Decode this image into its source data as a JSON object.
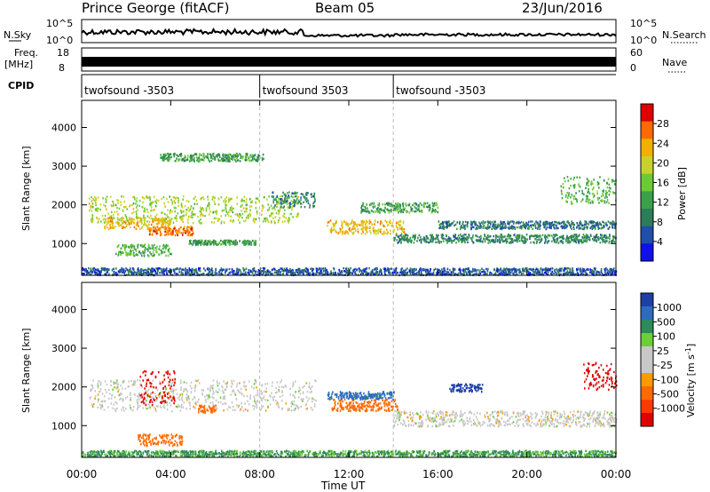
{
  "header": {
    "station": "Prince George (fitACF)",
    "beam": "Beam 05",
    "date": "23/Jun/2016"
  },
  "top_panels": {
    "nsky_label": "N.Sky",
    "nsky_ticks": [
      "10^5",
      "10^0"
    ],
    "nsearch_label": "N.Search",
    "nsearch_ticks": [
      "10^5",
      "10^0"
    ],
    "freq_label": "Freq.",
    "freq_unit": "[MHz]",
    "freq_ticks": [
      "18",
      "8"
    ],
    "nave_label": "Nave",
    "nave_ticks": [
      "60",
      "0"
    ],
    "cpid_label": "CPID",
    "cpid_segments": [
      {
        "label": "twofsound -3503",
        "start_h": 0,
        "end_h": 8
      },
      {
        "label": "twofsound 3503",
        "start_h": 8,
        "end_h": 14
      },
      {
        "label": "twofsound -3503",
        "start_h": 14,
        "end_h": 24
      }
    ]
  },
  "chart_data": [
    {
      "type": "heatmap",
      "title": "",
      "xlabel": "Time UT",
      "ylabel": "Slant Range [km]",
      "x_ticks": [
        "00:00",
        "04:00",
        "08:00",
        "12:00",
        "16:00",
        "20:00",
        "00:00"
      ],
      "xlim": [
        0,
        24
      ],
      "ylim": [
        180,
        4700
      ],
      "y_ticks": [
        1000,
        2000,
        3000,
        4000
      ],
      "colorbar": {
        "label": "Power [dB]",
        "ticks": [
          4,
          8,
          12,
          16,
          20,
          24,
          28
        ],
        "range": [
          0,
          32
        ],
        "colors": [
          "#1010ee",
          "#1f4fa8",
          "#2e7d5a",
          "#3aa04a",
          "#6ccb33",
          "#c8d22a",
          "#f2b100",
          "#ff6a00",
          "#e10000"
        ]
      },
      "echo_regions": [
        {
          "t0": 0.3,
          "t1": 9.8,
          "r_center": 1900,
          "r_width": 700,
          "value": 18
        },
        {
          "t0": 1.0,
          "t1": 4.0,
          "r_center": 1550,
          "r_width": 300,
          "value": 22
        },
        {
          "t0": 3.0,
          "t1": 5.0,
          "r_center": 1350,
          "r_width": 220,
          "value": 26
        },
        {
          "t0": 1.5,
          "t1": 4.0,
          "r_center": 850,
          "r_width": 300,
          "value": 14
        },
        {
          "t0": 4.8,
          "t1": 7.8,
          "r_center": 1050,
          "r_width": 120,
          "value": 12
        },
        {
          "t0": 3.5,
          "t1": 8.2,
          "r_center": 3250,
          "r_width": 200,
          "value": 12
        },
        {
          "t0": 8.5,
          "t1": 10.5,
          "r_center": 2150,
          "r_width": 400,
          "value": 10
        },
        {
          "t0": 11.0,
          "t1": 14.5,
          "r_center": 1450,
          "r_width": 350,
          "value": 22
        },
        {
          "t0": 12.5,
          "t1": 16.0,
          "r_center": 1950,
          "r_width": 250,
          "value": 12
        },
        {
          "t0": 14.0,
          "t1": 24.0,
          "r_center": 1150,
          "r_width": 220,
          "value": 10
        },
        {
          "t0": 16.0,
          "t1": 24.0,
          "r_center": 1500,
          "r_width": 200,
          "value": 8
        },
        {
          "t0": 21.5,
          "t1": 24.0,
          "r_center": 2400,
          "r_width": 700,
          "value": 14
        },
        {
          "t0": 0.0,
          "t1": 24.0,
          "r_center": 300,
          "r_width": 180,
          "value": 6
        }
      ]
    },
    {
      "type": "heatmap",
      "title": "",
      "xlabel": "Time UT",
      "ylabel": "Slant Range [km]",
      "x_ticks": [
        "00:00",
        "04:00",
        "08:00",
        "12:00",
        "16:00",
        "20:00",
        "00:00"
      ],
      "xlim": [
        0,
        24
      ],
      "ylim": [
        180,
        4700
      ],
      "y_ticks": [
        1000,
        2000,
        3000,
        4000
      ],
      "colorbar": {
        "label": "Velocity [m s^-1]",
        "ticks": [
          "1000",
          "500",
          "100",
          "25",
          "-25",
          "-100",
          "-500",
          "-1000"
        ],
        "colors": [
          "#1e3fa8",
          "#2e6bbf",
          "#2e8a5a",
          "#6ccf33",
          "#c8c8c8",
          "#c8c8c8",
          "#ff9a00",
          "#ff6a00",
          "#ff3a00",
          "#e10000"
        ]
      },
      "echo_regions": [
        {
          "t0": 0.3,
          "t1": 10.5,
          "r_center": 1800,
          "r_width": 800,
          "value": 0
        },
        {
          "t0": 2.6,
          "t1": 4.2,
          "r_center": 2000,
          "r_width": 900,
          "value": -700
        },
        {
          "t0": 2.5,
          "t1": 4.5,
          "r_center": 650,
          "r_width": 300,
          "value": -300
        },
        {
          "t0": 5.2,
          "t1": 6.0,
          "r_center": 1450,
          "r_width": 200,
          "value": -200
        },
        {
          "t0": 11.2,
          "t1": 14.2,
          "r_center": 1550,
          "r_width": 300,
          "value": -150
        },
        {
          "t0": 11.0,
          "t1": 14.0,
          "r_center": 1800,
          "r_width": 200,
          "value": 120
        },
        {
          "t0": 14.0,
          "t1": 24.0,
          "r_center": 1200,
          "r_width": 400,
          "value": 0
        },
        {
          "t0": 16.5,
          "t1": 18.0,
          "r_center": 2000,
          "r_width": 200,
          "value": 600
        },
        {
          "t0": 22.5,
          "t1": 24.0,
          "r_center": 2300,
          "r_width": 700,
          "value": -800
        },
        {
          "t0": 0.0,
          "t1": 24.0,
          "r_center": 300,
          "r_width": 150,
          "value": 60
        }
      ]
    }
  ]
}
